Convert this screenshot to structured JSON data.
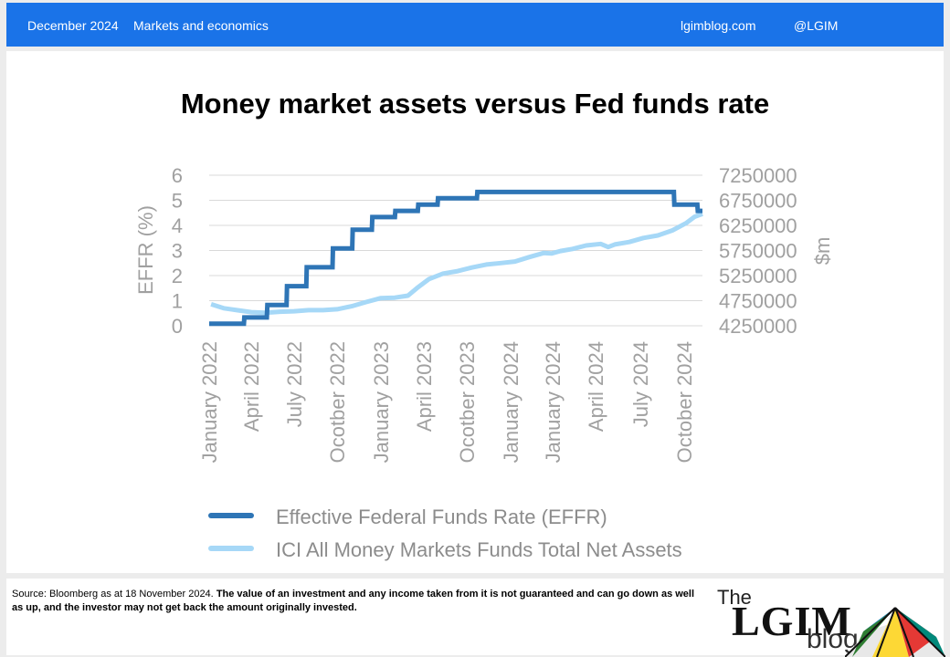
{
  "header": {
    "date": "December 2024",
    "category": "Markets and economics",
    "site": "lgimblog.com",
    "handle": "@LGIM"
  },
  "footer": {
    "source": "Source: Bloomberg as at 18 November 2024.",
    "disclaimer": "The value of an investment and any income taken from it is not guaranteed and can go down as well as up, and the investor may not get back the amount originally invested.",
    "logo_the": "The",
    "logo_lgim": "LGIM",
    "logo_blog": "blog"
  },
  "colors": {
    "header_bg": "#1a73e8",
    "effr": "#2e75b6",
    "ici": "#a6d8f7",
    "axis_text": "#a0a0a0",
    "grid": "#d9d9d9"
  },
  "chart_data": {
    "type": "line",
    "title": "Money market assets versus Fed funds rate",
    "ylabel": "EFFR (%)",
    "y2label": "$m",
    "ylim": [
      0,
      6
    ],
    "yticks": [
      "0",
      "1",
      "2",
      "3",
      "4",
      "5",
      "6"
    ],
    "y2lim": [
      4250000,
      7250000
    ],
    "y2ticks": [
      "4250000",
      "4750000",
      "5250000",
      "5750000",
      "6250000",
      "6750000",
      "7250000"
    ],
    "xlim": [
      "2022-01-01",
      "2024-11-18"
    ],
    "xticks": [
      "January 2022",
      "April 2022",
      "July 2022",
      "Ocotber 2022",
      "January 2023",
      "April 2023",
      "Ocotber 2023",
      "January 2024",
      "January 2024",
      "April 2024",
      "July 2024",
      "October 2024"
    ],
    "grid": true,
    "legend_position": "bottom",
    "series": [
      {
        "name": "Effective Federal Funds Rate (EFFR)",
        "axis": "left",
        "x": [
          "2022-01-01",
          "2022-03-16",
          "2022-03-17",
          "2022-05-04",
          "2022-05-05",
          "2022-06-15",
          "2022-06-16",
          "2022-07-27",
          "2022-07-28",
          "2022-09-21",
          "2022-09-22",
          "2022-11-02",
          "2022-11-03",
          "2022-12-14",
          "2022-12-15",
          "2023-02-01",
          "2023-02-02",
          "2023-03-22",
          "2023-03-23",
          "2023-05-03",
          "2023-05-04",
          "2023-07-26",
          "2023-07-27",
          "2024-09-18",
          "2024-09-19",
          "2024-11-07",
          "2024-11-08",
          "2024-11-18"
        ],
        "y": [
          0.08,
          0.08,
          0.33,
          0.33,
          0.83,
          0.83,
          1.58,
          1.58,
          2.33,
          2.33,
          3.08,
          3.08,
          3.83,
          3.83,
          4.33,
          4.33,
          4.58,
          4.58,
          4.83,
          4.83,
          5.08,
          5.08,
          5.33,
          5.33,
          4.83,
          4.83,
          4.58,
          4.58
        ]
      },
      {
        "name": "ICI All Money Markets Funds Total Net Assets",
        "axis": "right",
        "x": [
          "2022-01-05",
          "2022-02-01",
          "2022-03-01",
          "2022-04-01",
          "2022-05-01",
          "2022-06-01",
          "2022-07-01",
          "2022-08-01",
          "2022-09-01",
          "2022-10-01",
          "2022-11-01",
          "2022-12-01",
          "2023-01-01",
          "2023-02-01",
          "2023-03-01",
          "2023-03-20",
          "2023-04-15",
          "2023-05-15",
          "2023-06-15",
          "2023-07-15",
          "2023-08-15",
          "2023-09-15",
          "2023-10-15",
          "2023-11-15",
          "2023-12-15",
          "2024-01-01",
          "2024-01-20",
          "2024-02-15",
          "2024-03-15",
          "2024-04-15",
          "2024-05-01",
          "2024-05-15",
          "2024-06-15",
          "2024-07-15",
          "2024-08-15",
          "2024-09-15",
          "2024-10-15",
          "2024-11-01",
          "2024-11-18"
        ],
        "y": [
          4680000,
          4600000,
          4560000,
          4520000,
          4510000,
          4530000,
          4540000,
          4560000,
          4560000,
          4580000,
          4640000,
          4720000,
          4800000,
          4810000,
          4850000,
          5000000,
          5180000,
          5290000,
          5340000,
          5410000,
          5470000,
          5500000,
          5530000,
          5620000,
          5700000,
          5690000,
          5740000,
          5780000,
          5850000,
          5880000,
          5820000,
          5870000,
          5920000,
          6000000,
          6050000,
          6150000,
          6300000,
          6420000,
          6480000
        ]
      }
    ]
  }
}
